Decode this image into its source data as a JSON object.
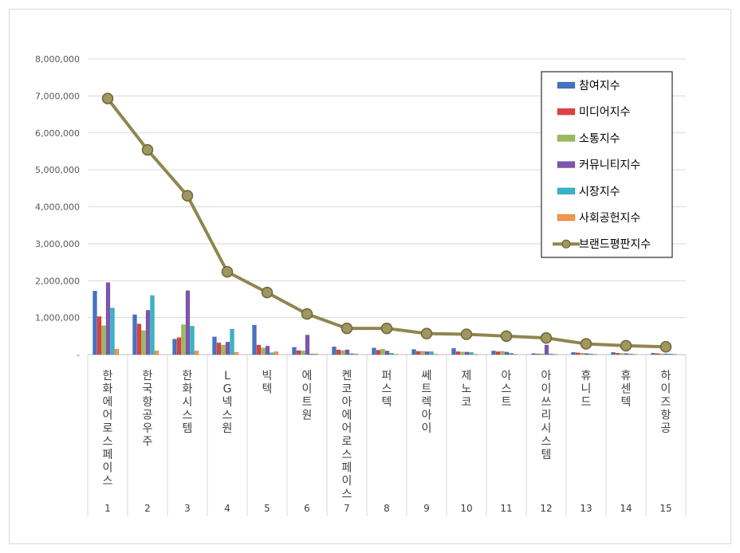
{
  "chart_data": {
    "type": "bar",
    "title": "",
    "xlabel": "",
    "ylabel": "",
    "ylim": [
      0,
      8000000
    ],
    "y_ticks": [
      "-",
      "1,000,000",
      "2,000,000",
      "3,000,000",
      "4,000,000",
      "5,000,000",
      "6,000,000",
      "7,000,000",
      "8,000,000"
    ],
    "grid": true,
    "legend_position": "top-right",
    "categories": [
      "한화에어로스페이스",
      "한국항공우주",
      "한화시스템",
      "LG넥스원",
      "빅텍",
      "에이트원",
      "켄코아에어로스페이스",
      "퍼스텍",
      "쎄트렉아이",
      "제노코",
      "아스트",
      "아이쓰리시스템",
      "휴니드",
      "휴센텍",
      "하이즈항공"
    ],
    "ranks": [
      "1",
      "2",
      "3",
      "4",
      "5",
      "6",
      "7",
      "8",
      "9",
      "10",
      "11",
      "12",
      "13",
      "14",
      "15"
    ],
    "series": [
      {
        "name": "참여지수",
        "color": "#4472c4",
        "kind": "bar",
        "values": [
          1720000,
          1080000,
          420000,
          480000,
          800000,
          200000,
          210000,
          180000,
          140000,
          170000,
          100000,
          30000,
          60000,
          60000,
          40000
        ]
      },
      {
        "name": "미디어지수",
        "color": "#e0403e",
        "kind": "bar",
        "values": [
          1030000,
          830000,
          460000,
          320000,
          260000,
          110000,
          130000,
          120000,
          90000,
          80000,
          80000,
          20000,
          50000,
          40000,
          30000
        ]
      },
      {
        "name": "소통지수",
        "color": "#9bbb59",
        "kind": "bar",
        "values": [
          780000,
          650000,
          810000,
          260000,
          180000,
          100000,
          110000,
          150000,
          90000,
          70000,
          90000,
          20000,
          40000,
          30000,
          20000
        ]
      },
      {
        "name": "커뮤니티지수",
        "color": "#7f55b0",
        "kind": "bar",
        "values": [
          1950000,
          1200000,
          1730000,
          340000,
          230000,
          530000,
          130000,
          100000,
          80000,
          70000,
          70000,
          260000,
          30000,
          30000,
          20000
        ]
      },
      {
        "name": "시장지수",
        "color": "#33b5c9",
        "kind": "bar",
        "values": [
          1260000,
          1600000,
          770000,
          690000,
          50000,
          20000,
          30000,
          40000,
          80000,
          60000,
          40000,
          20000,
          20000,
          20000,
          20000
        ]
      },
      {
        "name": "사회공헌지수",
        "color": "#f79646",
        "kind": "bar",
        "values": [
          150000,
          100000,
          100000,
          60000,
          80000,
          20000,
          20000,
          10000,
          10000,
          10000,
          10000,
          10000,
          10000,
          10000,
          10000
        ]
      },
      {
        "name": "브랜드평판지수",
        "color": "#8f8650",
        "kind": "line",
        "values": [
          6930000,
          5540000,
          4300000,
          2240000,
          1680000,
          1100000,
          710000,
          710000,
          570000,
          550000,
          500000,
          450000,
          290000,
          240000,
          210000
        ]
      }
    ]
  }
}
